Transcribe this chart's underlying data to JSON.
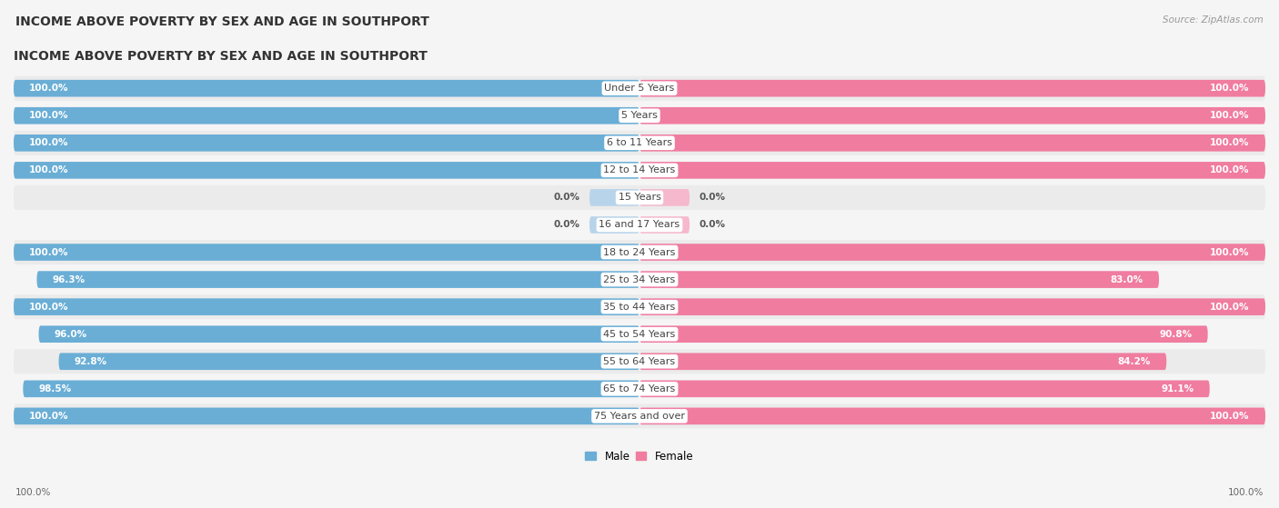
{
  "title": "INCOME ABOVE POVERTY BY SEX AND AGE IN SOUTHPORT",
  "source": "Source: ZipAtlas.com",
  "categories": [
    "Under 5 Years",
    "5 Years",
    "6 to 11 Years",
    "12 to 14 Years",
    "15 Years",
    "16 and 17 Years",
    "18 to 24 Years",
    "25 to 34 Years",
    "35 to 44 Years",
    "45 to 54 Years",
    "55 to 64 Years",
    "65 to 74 Years",
    "75 Years and over"
  ],
  "male": [
    100.0,
    100.0,
    100.0,
    100.0,
    0.0,
    0.0,
    100.0,
    96.3,
    100.0,
    96.0,
    92.8,
    98.5,
    100.0
  ],
  "female": [
    100.0,
    100.0,
    100.0,
    100.0,
    0.0,
    0.0,
    100.0,
    83.0,
    100.0,
    90.8,
    84.2,
    91.1,
    100.0
  ],
  "male_color": "#6aaed6",
  "female_color": "#f07ca0",
  "male_zero_color": "#b8d4ea",
  "female_zero_color": "#f5b8cc",
  "background_row_odd": "#ebebeb",
  "background_row_even": "#f5f5f5",
  "background_color": "#f5f5f5",
  "title_fontsize": 10,
  "label_fontsize": 8,
  "value_fontsize": 7.5,
  "legend_fontsize": 8.5,
  "source_fontsize": 7.5
}
